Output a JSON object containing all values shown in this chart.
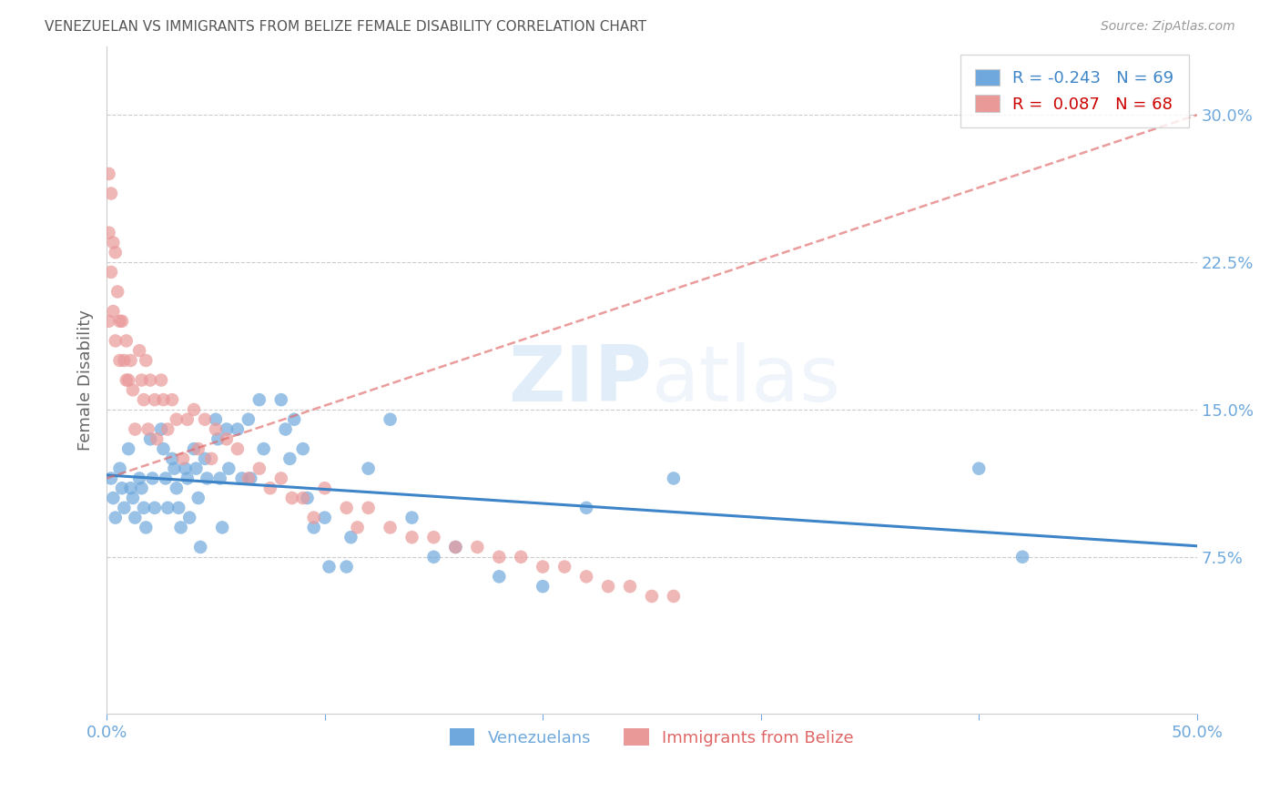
{
  "title": "VENEZUELAN VS IMMIGRANTS FROM BELIZE FEMALE DISABILITY CORRELATION CHART",
  "source": "Source: ZipAtlas.com",
  "ylabel": "Female Disability",
  "xlim": [
    0.0,
    0.5
  ],
  "ylim": [
    -0.005,
    0.335
  ],
  "yticks": [
    0.075,
    0.15,
    0.225,
    0.3
  ],
  "ytick_labels": [
    "7.5%",
    "15.0%",
    "22.5%",
    "30.0%"
  ],
  "xticks": [
    0.0,
    0.1,
    0.2,
    0.3,
    0.4,
    0.5
  ],
  "xtick_labels": [
    "0.0%",
    "",
    "",
    "",
    "",
    "50.0%"
  ],
  "blue_color": "#6fa8dc",
  "pink_color": "#ea9999",
  "blue_line_color": "#3d85c8",
  "pink_line_color": "#e06666",
  "grid_color": "#cccccc",
  "tick_color": "#6fa8dc",
  "title_color": "#555555",
  "watermark_zip": "ZIP",
  "watermark_atlas": "atlas",
  "venezuelans_x": [
    0.002,
    0.003,
    0.004,
    0.006,
    0.007,
    0.008,
    0.01,
    0.011,
    0.012,
    0.013,
    0.015,
    0.016,
    0.017,
    0.018,
    0.02,
    0.021,
    0.022,
    0.025,
    0.026,
    0.027,
    0.028,
    0.03,
    0.031,
    0.032,
    0.033,
    0.034,
    0.036,
    0.037,
    0.038,
    0.04,
    0.041,
    0.042,
    0.043,
    0.045,
    0.046,
    0.05,
    0.051,
    0.052,
    0.053,
    0.055,
    0.056,
    0.06,
    0.062,
    0.065,
    0.066,
    0.07,
    0.072,
    0.08,
    0.082,
    0.084,
    0.086,
    0.09,
    0.092,
    0.095,
    0.1,
    0.102,
    0.11,
    0.112,
    0.12,
    0.13,
    0.14,
    0.15,
    0.16,
    0.18,
    0.2,
    0.22,
    0.26,
    0.4,
    0.42
  ],
  "venezuelans_y": [
    0.115,
    0.105,
    0.095,
    0.12,
    0.11,
    0.1,
    0.13,
    0.11,
    0.105,
    0.095,
    0.115,
    0.11,
    0.1,
    0.09,
    0.135,
    0.115,
    0.1,
    0.14,
    0.13,
    0.115,
    0.1,
    0.125,
    0.12,
    0.11,
    0.1,
    0.09,
    0.12,
    0.115,
    0.095,
    0.13,
    0.12,
    0.105,
    0.08,
    0.125,
    0.115,
    0.145,
    0.135,
    0.115,
    0.09,
    0.14,
    0.12,
    0.14,
    0.115,
    0.145,
    0.115,
    0.155,
    0.13,
    0.155,
    0.14,
    0.125,
    0.145,
    0.13,
    0.105,
    0.09,
    0.095,
    0.07,
    0.07,
    0.085,
    0.12,
    0.145,
    0.095,
    0.075,
    0.08,
    0.065,
    0.06,
    0.1,
    0.115,
    0.12,
    0.075
  ],
  "belize_x": [
    0.001,
    0.001,
    0.001,
    0.002,
    0.002,
    0.003,
    0.003,
    0.004,
    0.004,
    0.005,
    0.006,
    0.006,
    0.007,
    0.008,
    0.009,
    0.009,
    0.01,
    0.011,
    0.012,
    0.013,
    0.015,
    0.016,
    0.017,
    0.018,
    0.019,
    0.02,
    0.022,
    0.023,
    0.025,
    0.026,
    0.028,
    0.03,
    0.032,
    0.035,
    0.037,
    0.04,
    0.042,
    0.045,
    0.048,
    0.05,
    0.055,
    0.06,
    0.065,
    0.07,
    0.075,
    0.08,
    0.085,
    0.09,
    0.095,
    0.1,
    0.11,
    0.115,
    0.12,
    0.13,
    0.14,
    0.15,
    0.16,
    0.17,
    0.18,
    0.19,
    0.2,
    0.21,
    0.22,
    0.23,
    0.24,
    0.25,
    0.26
  ],
  "belize_y": [
    0.27,
    0.24,
    0.195,
    0.26,
    0.22,
    0.235,
    0.2,
    0.23,
    0.185,
    0.21,
    0.195,
    0.175,
    0.195,
    0.175,
    0.185,
    0.165,
    0.165,
    0.175,
    0.16,
    0.14,
    0.18,
    0.165,
    0.155,
    0.175,
    0.14,
    0.165,
    0.155,
    0.135,
    0.165,
    0.155,
    0.14,
    0.155,
    0.145,
    0.125,
    0.145,
    0.15,
    0.13,
    0.145,
    0.125,
    0.14,
    0.135,
    0.13,
    0.115,
    0.12,
    0.11,
    0.115,
    0.105,
    0.105,
    0.095,
    0.11,
    0.1,
    0.09,
    0.1,
    0.09,
    0.085,
    0.085,
    0.08,
    0.08,
    0.075,
    0.075,
    0.07,
    0.07,
    0.065,
    0.06,
    0.06,
    0.055,
    0.055
  ]
}
